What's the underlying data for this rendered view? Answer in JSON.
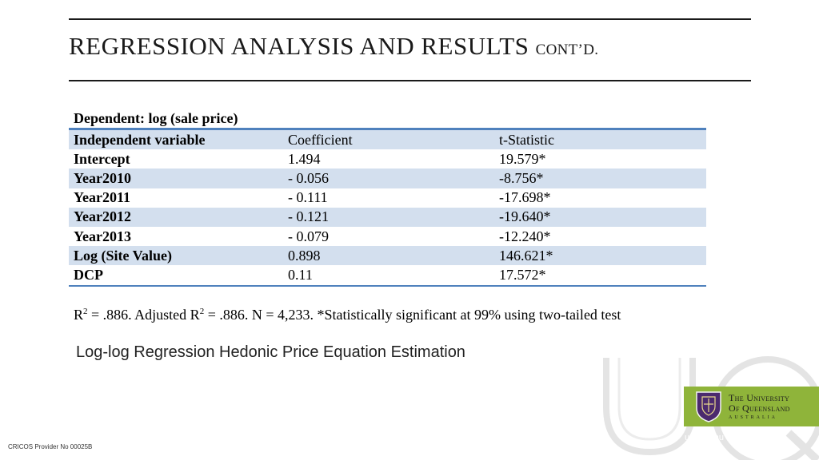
{
  "title": {
    "main": "REGRESSION ANALYSIS AND RESULTS",
    "suffix": "CONT’D."
  },
  "table": {
    "dependent": "Dependent: log (sale price)",
    "header": [
      "Independent variable",
      "Coefficient",
      "t-Statistic"
    ],
    "rows": [
      [
        "Intercept",
        "1.494",
        "19.579*"
      ],
      [
        "Year2010",
        "- 0.056",
        "-8.756*"
      ],
      [
        "Year2011",
        "- 0.111",
        "-17.698*"
      ],
      [
        "Year2012",
        "- 0.121",
        "-19.640*"
      ],
      [
        "Year2013",
        "- 0.079",
        "-12.240*"
      ],
      [
        "Log (Site Value)",
        "0.898",
        "146.621*"
      ],
      [
        "DCP",
        "0.11",
        "17.572*"
      ]
    ]
  },
  "footnote": {
    "r": "R",
    "sup1": "2",
    "mid": " = .886. Adjusted R",
    "sup2": "2",
    "end": " = .886. N = 4,233. *Statistically significant at 99% using two-tailed test"
  },
  "caption": "Log-log Regression Hedonic Price Equation Estimation",
  "logo": {
    "line1": "The University",
    "line2": "Of Queensland",
    "line3": "AUSTRALIA",
    "colors": {
      "background": "#8fb43a",
      "crest": "#4b2a6e"
    }
  },
  "site": "uq.edu.au",
  "provider": "CRICOS Provider No 00025B",
  "colors": {
    "table_rule": "#4f81bd",
    "row_shade": "#d3dfee"
  }
}
